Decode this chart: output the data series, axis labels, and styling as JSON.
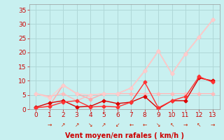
{
  "bg_color": "#c8f0f0",
  "grid_color": "#b0d8d8",
  "text_color": "#cc0000",
  "xlabel": "Vent moyen/en rafales ( km/h )",
  "xlim": [
    -0.5,
    13.5
  ],
  "ylim": [
    0,
    37
  ],
  "yticks": [
    0,
    5,
    10,
    15,
    20,
    25,
    30,
    35
  ],
  "xticks": [
    0,
    1,
    2,
    3,
    4,
    5,
    6,
    7,
    8,
    9,
    10,
    11,
    12,
    13
  ],
  "lines": [
    {
      "x": [
        0,
        1,
        2,
        3,
        4,
        5,
        6,
        7,
        8,
        9,
        10,
        11,
        12,
        13
      ],
      "y": [
        0.5,
        1.2,
        8.5,
        5.5,
        3.5,
        5.5,
        5.5,
        7.5,
        13.5,
        20.5,
        12.5,
        19.5,
        25.5,
        31.5
      ],
      "color": "#ffaaaa",
      "lw": 1.0,
      "marker": "D",
      "ms": 2.5
    },
    {
      "x": [
        0,
        1,
        2,
        3,
        4,
        5,
        6,
        7,
        8,
        9,
        10,
        11,
        12,
        13
      ],
      "y": [
        5.5,
        4.5,
        5.5,
        3.0,
        5.0,
        5.5,
        5.5,
        5.5,
        5.5,
        5.5,
        5.5,
        5.5,
        5.5,
        5.5
      ],
      "color": "#ffbbbb",
      "lw": 1.0,
      "marker": "D",
      "ms": 2.5
    },
    {
      "x": [
        0,
        1,
        2,
        3,
        4,
        5,
        6,
        7,
        8,
        9,
        10,
        11,
        12,
        13
      ],
      "y": [
        5.5,
        4.0,
        8.5,
        5.5,
        5.0,
        5.5,
        5.5,
        7.5,
        13.5,
        20.5,
        12.5,
        19.5,
        25.5,
        31.5
      ],
      "color": "#ffcccc",
      "lw": 1.0,
      "marker": "D",
      "ms": 2.5
    },
    {
      "x": [
        0,
        1,
        2,
        3,
        4,
        5,
        6,
        7,
        8,
        9,
        10,
        11,
        12,
        13
      ],
      "y": [
        0.7,
        2.2,
        3.0,
        0.8,
        1.0,
        3.0,
        2.0,
        2.5,
        4.5,
        0.2,
        3.0,
        3.0,
        11.0,
        10.0
      ],
      "color": "#dd0000",
      "lw": 1.0,
      "marker": "D",
      "ms": 2.5
    },
    {
      "x": [
        0,
        1,
        2,
        3,
        4,
        5,
        6,
        7,
        8,
        9,
        10,
        11,
        12,
        13
      ],
      "y": [
        0.5,
        1.0,
        2.5,
        3.0,
        0.8,
        1.0,
        0.8,
        2.5,
        9.5,
        0.5,
        3.0,
        4.5,
        11.5,
        9.5
      ],
      "color": "#ff3333",
      "lw": 1.0,
      "marker": "D",
      "ms": 2.5
    }
  ],
  "arrows": [
    {
      "x": 1,
      "ch": "→"
    },
    {
      "x": 2,
      "ch": "↗"
    },
    {
      "x": 3,
      "ch": "↗"
    },
    {
      "x": 4,
      "ch": "↘"
    },
    {
      "x": 5,
      "ch": "↗"
    },
    {
      "x": 6,
      "ch": "↙"
    },
    {
      "x": 7,
      "ch": "←"
    },
    {
      "x": 8,
      "ch": "←"
    },
    {
      "x": 9,
      "ch": "↘"
    },
    {
      "x": 10,
      "ch": "↖"
    },
    {
      "x": 11,
      "ch": "→"
    },
    {
      "x": 12,
      "ch": "↖"
    },
    {
      "x": 13,
      "ch": "→"
    }
  ]
}
